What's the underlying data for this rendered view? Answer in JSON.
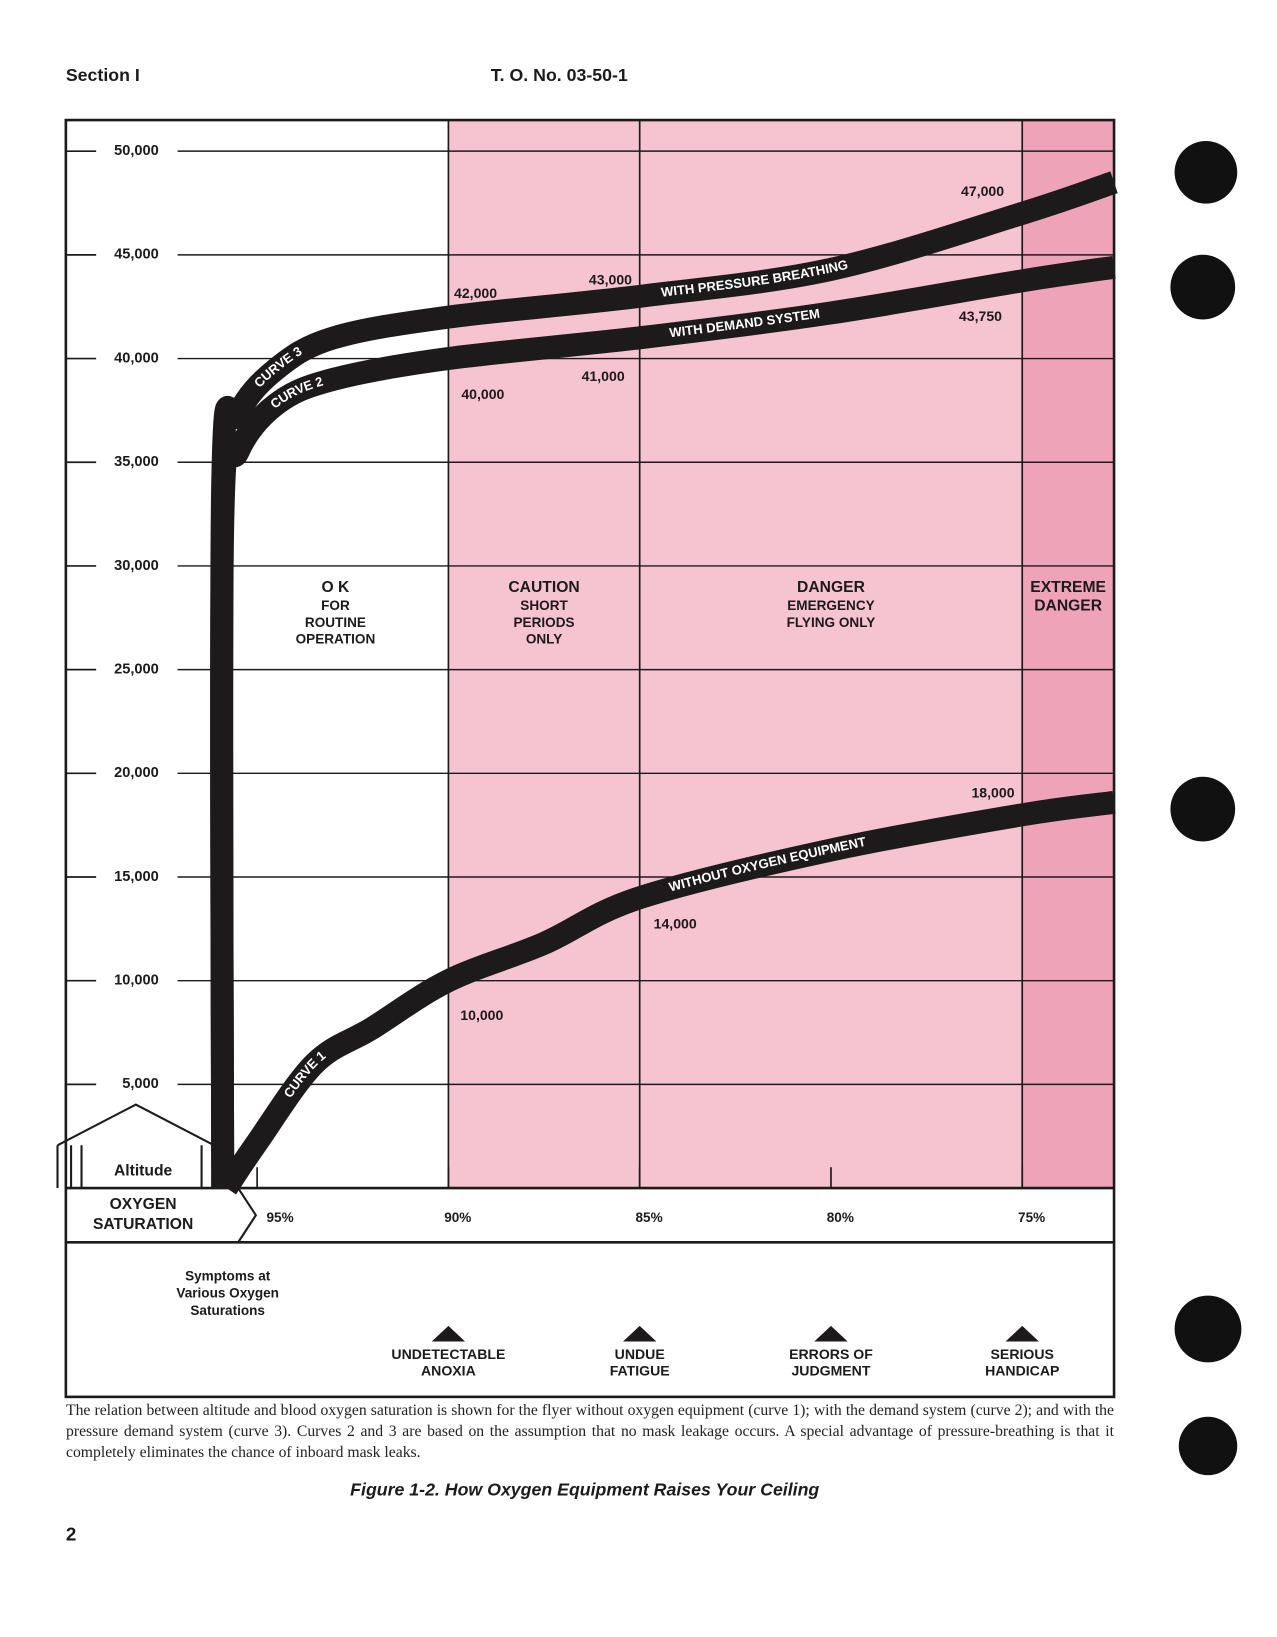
{
  "header": {
    "section": "Section I",
    "doc_number": "T. O. No. 03-50-1"
  },
  "chart_data": {
    "type": "line",
    "y_axis_label": "Altitude",
    "x_axis_label": [
      "OXYGEN",
      "SATURATION"
    ],
    "xlim": [
      100,
      72.6
    ],
    "xticks": [
      {
        "value": 95,
        "label": "95%"
      },
      {
        "value": 90,
        "label": "90%"
      },
      {
        "value": 85,
        "label": "85%"
      },
      {
        "value": 80,
        "label": "80%"
      },
      {
        "value": 75,
        "label": "75%"
      }
    ],
    "ylim": [
      0,
      51500
    ],
    "yticks": [
      {
        "value": 5000,
        "label": "5,000"
      },
      {
        "value": 10000,
        "label": "10,000"
      },
      {
        "value": 15000,
        "label": "15,000"
      },
      {
        "value": 20000,
        "label": "20,000"
      },
      {
        "value": 25000,
        "label": "25,000"
      },
      {
        "value": 30000,
        "label": "30,000"
      },
      {
        "value": 35000,
        "label": "35,000"
      },
      {
        "value": 40000,
        "label": "40,000"
      },
      {
        "value": 45000,
        "label": "45,000"
      },
      {
        "value": 50000,
        "label": "50,000"
      }
    ],
    "grid": true,
    "zones": [
      {
        "title": [
          "O K"
        ],
        "lines": [
          "FOR",
          "ROUTINE",
          "OPERATION"
        ],
        "color": "#ffffff"
      },
      {
        "title": [
          "CAUTION"
        ],
        "lines": [
          "SHORT",
          "PERIODS",
          "ONLY"
        ],
        "color": "#f6c3d0"
      },
      {
        "title": [
          "DANGER"
        ],
        "lines": [
          "EMERGENCY",
          "FLYING ONLY"
        ],
        "color": "#f6c3d0"
      },
      {
        "title": [
          "EXTREME",
          "DANGER"
        ],
        "lines": [],
        "color": "#efa3b8"
      }
    ],
    "series": [
      {
        "name": "CURVE 1",
        "description": "WITHOUT OXYGEN EQUIPMENT",
        "color": "#1c1a1b",
        "x": [
          95.8,
          95,
          93.5,
          92,
          90,
          87.5,
          85,
          80,
          75,
          72.6
        ],
        "values": [
          0,
          2200,
          6000,
          7700,
          10000,
          11800,
          14000,
          16300,
          18000,
          18600
        ],
        "value_labels": [
          null,
          null,
          null,
          null,
          "10,000",
          null,
          "14,000",
          null,
          "18,000",
          null
        ]
      },
      {
        "name": "CURVE 2",
        "description": "WITH DEMAND SYSTEM",
        "color": "#1c1a1b",
        "x": [
          95.9,
          95.9,
          95.5,
          94.5,
          93,
          90,
          85,
          80,
          75,
          72.6
        ],
        "values": [
          0,
          32000,
          35500,
          37800,
          39000,
          40000,
          41000,
          42200,
          43750,
          44400
        ],
        "value_labels": [
          null,
          null,
          null,
          null,
          null,
          "40,000",
          "41,000",
          null,
          "43,750",
          null
        ]
      },
      {
        "name": "CURVE 3",
        "description": "WITH PRESSURE BREATHING",
        "color": "#1c1a1b",
        "x": [
          95.9,
          95.9,
          95.5,
          94.5,
          93,
          90,
          85,
          80,
          75,
          72.6
        ],
        "values": [
          0,
          34000,
          37300,
          39500,
          41000,
          42000,
          43000,
          44300,
          47000,
          48500
        ],
        "value_labels": [
          null,
          null,
          null,
          null,
          null,
          "42,000",
          "43,000",
          null,
          "47,000",
          null
        ]
      }
    ]
  },
  "symptoms": {
    "title": [
      "Symptoms at",
      "Various Oxygen",
      "Saturations"
    ],
    "items": [
      {
        "lines": [
          "UNDETECTABLE",
          "ANOXIA"
        ]
      },
      {
        "lines": [
          "UNDUE",
          "FATIGUE"
        ]
      },
      {
        "lines": [
          "ERRORS OF",
          "JUDGMENT"
        ]
      },
      {
        "lines": [
          "SERIOUS",
          "HANDICAP"
        ]
      }
    ]
  },
  "caption": "The relation between altitude and blood oxygen saturation is shown for the flyer without oxygen equipment (curve 1); with the demand system (curve 2); and with the pressure demand system (curve 3). Curves 2 and 3 are based on the assumption that no mask leakage occurs. A special advantage of pressure-breathing is that it completely eliminates the chance of inboard mask leaks.",
  "figure_title": "Figure 1-2.  How Oxygen Equipment Raises Your Ceiling",
  "page_number": "2"
}
